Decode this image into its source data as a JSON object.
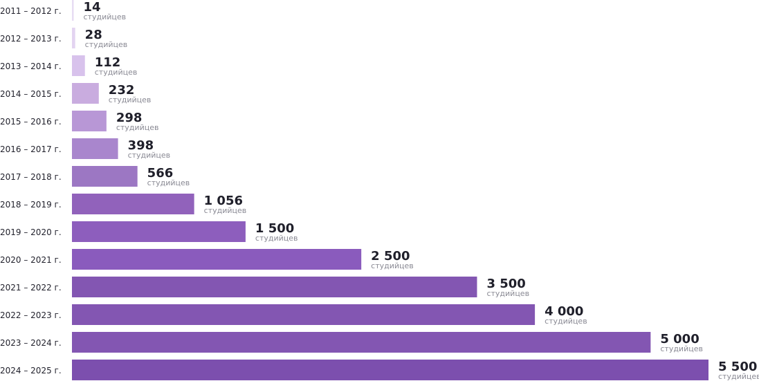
{
  "chart_data": {
    "type": "bar",
    "orientation": "horizontal",
    "categories": [
      "2011 – 2012 г.",
      "2012 – 2013 г.",
      "2013 – 2014 г.",
      "2014 – 2015 г.",
      "2015 – 2016 г.",
      "2016 – 2017 г.",
      "2017 – 2018 г.",
      "2018 – 2019 г.",
      "2019 – 2020 г.",
      "2020 – 2021 г.",
      "2021 – 2022 г.",
      "2022 – 2023 г.",
      "2023 – 2024 г.",
      "2024 – 2025 г."
    ],
    "values": [
      14,
      28,
      112,
      232,
      298,
      398,
      566,
      1056,
      1500,
      2500,
      3500,
      4000,
      5000,
      5500
    ],
    "value_labels": [
      "14",
      "28",
      "112",
      "232",
      "298",
      "398",
      "566",
      "1 056",
      "1 500",
      "2 500",
      "3 500",
      "4 000",
      "5 000",
      "5 500"
    ],
    "unit_label": "студийцев",
    "title": "",
    "xlabel": "",
    "ylabel": "",
    "xlim": [
      0,
      5500
    ],
    "grid": false,
    "legend": "none",
    "colors": [
      "#e7dcf3",
      "#e3d4f1",
      "#d8c2ec",
      "#c9acdf",
      "#b897d6",
      "#a986cd",
      "#9c77c3",
      "#9162bb",
      "#8d5ebd",
      "#8a5bbd",
      "#8356b2",
      "#8356b2",
      "#8356b2",
      "#7c4fae"
    ]
  }
}
